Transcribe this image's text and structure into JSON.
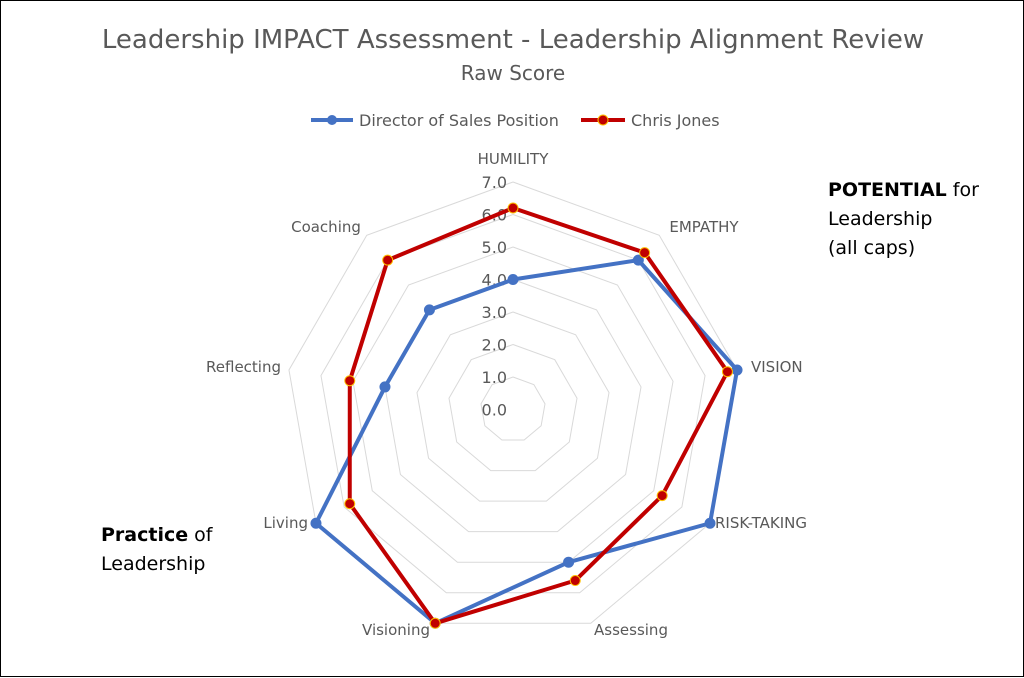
{
  "chart_data": {
    "type": "radar",
    "title": "Leadership IMPACT Assessment - Leadership Alignment Review",
    "subtitle": "Raw Score",
    "categories": [
      "HUMILITY",
      "EMPATHY",
      "VISION",
      "RISK-TAKING",
      "Assessing",
      "Visioning",
      "Living",
      "Reflecting",
      "Coaching"
    ],
    "r_ticks": [
      "0.0",
      "1.0",
      "2.0",
      "3.0",
      "4.0",
      "5.0",
      "6.0",
      "7.0"
    ],
    "rlim": [
      0,
      7
    ],
    "grid": true,
    "legend_position": "top",
    "series": [
      {
        "name": "Director of Sales Position",
        "color": "#4472C4",
        "values": [
          4.0,
          6.0,
          7.0,
          7.0,
          5.0,
          7.0,
          7.0,
          4.0,
          4.0
        ]
      },
      {
        "name": "Chris Jones",
        "color": "#C00000",
        "values": [
          6.2,
          6.3,
          6.7,
          5.3,
          5.6,
          7.0,
          5.8,
          5.1,
          6.0
        ]
      }
    ]
  },
  "annotations": {
    "potential_bold": "POTENTIAL",
    "potential_rest": " for",
    "potential_line2": "Leadership",
    "potential_line3": "(all caps)",
    "practice_bold": "Practice",
    "practice_rest": " of",
    "practice_line2": "Leadership"
  }
}
